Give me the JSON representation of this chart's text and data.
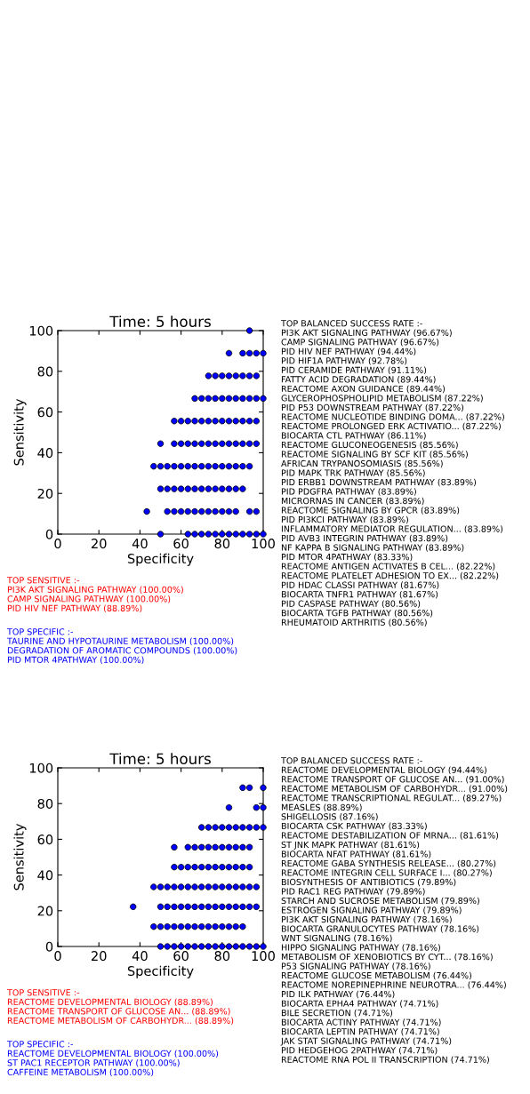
{
  "chart_data": [
    {
      "type": "scatter",
      "title": "Time: 5 hours",
      "xlabel": "Specificity",
      "ylabel": "Sensitivity",
      "xlim": [
        0,
        100
      ],
      "ylim": [
        0,
        100
      ],
      "xticks": [
        0,
        20,
        40,
        60,
        80,
        100
      ],
      "yticks": [
        0,
        20,
        40,
        60,
        80,
        100
      ],
      "marker": "circle",
      "grid": false,
      "series": [
        {
          "color": "#0000ff",
          "x": [
            93.33,
            83.33,
            90,
            93.33,
            96.67,
            100,
            73.33,
            76.67,
            80,
            83.33,
            86.67,
            90,
            93.33,
            96.67,
            66.67,
            70,
            73.33,
            76.67,
            80,
            83.33,
            86.67,
            90,
            93.33,
            96.67,
            100,
            56.67,
            60,
            63.33,
            66.67,
            70,
            73.33,
            76.67,
            80,
            83.33,
            86.67,
            90,
            93.33,
            96.67,
            50,
            56.67,
            60,
            63.33,
            66.67,
            70,
            73.33,
            76.67,
            80,
            83.33,
            86.67,
            90,
            93.33,
            96.67,
            46.67,
            50,
            53.33,
            56.67,
            60,
            63.33,
            66.67,
            70,
            73.33,
            76.67,
            80,
            83.33,
            86.67,
            90,
            93.33,
            50,
            53.33,
            56.67,
            60,
            63.33,
            66.67,
            70,
            73.33,
            76.67,
            80,
            83.33,
            86.67,
            90,
            43.33,
            53.33,
            56.67,
            60,
            63.33,
            66.67,
            70,
            73.33,
            76.67,
            80,
            83.33,
            86.67,
            93.33,
            96.67,
            50,
            63.33,
            66.67,
            70,
            73.33,
            76.67,
            80,
            83.33,
            86.67,
            90,
            93.33,
            96.67,
            100
          ],
          "values": [
            100,
            88.89,
            88.89,
            88.89,
            88.89,
            88.89,
            77.78,
            77.78,
            77.78,
            77.78,
            77.78,
            77.78,
            77.78,
            77.78,
            66.67,
            66.67,
            66.67,
            66.67,
            66.67,
            66.67,
            66.67,
            66.67,
            66.67,
            66.67,
            66.67,
            55.56,
            55.56,
            55.56,
            55.56,
            55.56,
            55.56,
            55.56,
            55.56,
            55.56,
            55.56,
            55.56,
            55.56,
            55.56,
            44.44,
            44.44,
            44.44,
            44.44,
            44.44,
            44.44,
            44.44,
            44.44,
            44.44,
            44.44,
            44.44,
            44.44,
            44.44,
            44.44,
            33.33,
            33.33,
            33.33,
            33.33,
            33.33,
            33.33,
            33.33,
            33.33,
            33.33,
            33.33,
            33.33,
            33.33,
            33.33,
            33.33,
            33.33,
            22.22,
            22.22,
            22.22,
            22.22,
            22.22,
            22.22,
            22.22,
            22.22,
            22.22,
            22.22,
            22.22,
            22.22,
            22.22,
            11.11,
            11.11,
            11.11,
            11.11,
            11.11,
            11.11,
            11.11,
            11.11,
            11.11,
            11.11,
            11.11,
            11.11,
            11.11,
            11.11,
            0,
            0,
            0,
            0,
            0,
            0,
            0,
            0,
            0,
            0,
            0,
            0,
            0
          ]
        }
      ],
      "annotations": [
        "TOP BALANCED SUCCESS RATE :-\nPI3K AKT SIGNALING PATHWAY (96.67%)\nCAMP SIGNALING PATHWAY (96.67%)\nPID HIV NEF PATHWAY (94.44%)\nPID HIF1A PATHWAY (92.78%)\nPID CERAMIDE PATHWAY (91.11%)\nFATTY ACID DEGRADATION (89.44%)\nREACTOME AXON GUIDANCE (89.44%)\nGLYCEROPHOSPHOLIPID METABOLISM (87.22%)\nPID P53 DOWNSTREAM PATHWAY (87.22%)\nREACTOME NUCLEOTIDE BINDING DOMA... (87.22%)\nREACTOME PROLONGED ERK ACTIVATIO... (87.22%)\nBIOCARTA CTL PATHWAY (86.11%)\nREACTOME GLUCONEOGENESIS (85.56%)\nREACTOME SIGNALING BY SCF KIT (85.56%)\nAFRICAN TRYPANOSOMIASIS (85.56%)\nPID MAPK TRK PATHWAY (85.56%)\nPID ERBB1 DOWNSTREAM PATHWAY (83.89%)\nPID PDGFRA PATHWAY (83.89%)\nMICRORNAS IN CANCER (83.89%)\nREACTOME SIGNALING BY GPCR (83.89%)\nPID PI3KCI PATHWAY (83.89%)\nINFLAMMATORY MEDIATOR REGULATION... (83.89%)\nPID AVB3 INTEGRIN PATHWAY (83.89%)\nNF KAPPA B SIGNALING PATHWAY (83.89%)\nPID MTOR 4PATHWAY (83.33%)\nREACTOME ANTIGEN ACTIVATES B CEL... (82.22%)\nREACTOME PLATELET ADHESION TO EX... (82.22%)\nPID HDAC CLASSI PATHWAY (81.67%)\nBIOCARTA TNFR1 PATHWAY (81.67%)\nPID CASPASE PATHWAY (80.56%)\nBIOCARTA TGFB PATHWAY (80.56%)\nRHEUMATOID ARTHRITIS (80.56%)",
        "TOP SENSITIVE :-\nPI3K AKT SIGNALING PATHWAY (100.00%)\nCAMP SIGNALING PATHWAY (100.00%)\nPID HIV NEF PATHWAY (88.89%)",
        "TOP SPECIFIC :-\nTAURINE AND HYPOTAURINE METABOLISM (100.00%)\nDEGRADATION OF AROMATIC COMPOUNDS (100.00%)\nPID MTOR 4PATHWAY (100.00%)"
      ]
    },
    {
      "type": "scatter",
      "title": "Time: 5 hours",
      "xlabel": "Specificity",
      "ylabel": "Sensitivity",
      "xlim": [
        0,
        100
      ],
      "ylim": [
        0,
        100
      ],
      "xticks": [
        0,
        20,
        40,
        60,
        80,
        100
      ],
      "yticks": [
        0,
        20,
        40,
        60,
        80,
        100
      ],
      "marker": "circle",
      "grid": false,
      "series": [
        {
          "color": "#0000ff",
          "x": [
            90,
            93.33,
            100,
            83.33,
            96.67,
            100,
            70,
            73.33,
            76.67,
            80,
            83.33,
            86.67,
            90,
            93.33,
            96.67,
            100,
            56.67,
            63.33,
            66.67,
            70,
            73.33,
            76.67,
            80,
            83.33,
            86.67,
            90,
            93.33,
            56.67,
            60,
            63.33,
            66.67,
            70,
            73.33,
            76.67,
            80,
            83.33,
            86.67,
            90,
            93.33,
            46.67,
            50,
            53.33,
            56.67,
            60,
            63.33,
            66.67,
            70,
            73.33,
            76.67,
            80,
            83.33,
            86.67,
            90,
            93.33,
            96.67,
            36.67,
            50,
            53.33,
            56.67,
            60,
            63.33,
            66.67,
            70,
            73.33,
            76.67,
            80,
            83.33,
            86.67,
            90,
            93.33,
            96.67,
            46.67,
            50,
            53.33,
            56.67,
            60,
            63.33,
            66.67,
            70,
            73.33,
            76.67,
            80,
            83.33,
            86.67,
            90,
            50,
            53.33,
            56.67,
            60,
            63.33,
            66.67,
            70,
            73.33,
            76.67,
            80,
            83.33,
            86.67,
            90,
            93.33,
            96.67,
            100
          ],
          "values": [
            88.89,
            88.89,
            88.89,
            77.78,
            77.78,
            77.78,
            66.67,
            66.67,
            66.67,
            66.67,
            66.67,
            66.67,
            66.67,
            66.67,
            66.67,
            66.67,
            55.56,
            55.56,
            55.56,
            55.56,
            55.56,
            55.56,
            55.56,
            55.56,
            55.56,
            55.56,
            55.56,
            44.44,
            44.44,
            44.44,
            44.44,
            44.44,
            44.44,
            44.44,
            44.44,
            44.44,
            44.44,
            44.44,
            44.44,
            33.33,
            33.33,
            33.33,
            33.33,
            33.33,
            33.33,
            33.33,
            33.33,
            33.33,
            33.33,
            33.33,
            33.33,
            33.33,
            33.33,
            33.33,
            33.33,
            22.22,
            22.22,
            22.22,
            22.22,
            22.22,
            22.22,
            22.22,
            22.22,
            22.22,
            22.22,
            22.22,
            22.22,
            22.22,
            22.22,
            22.22,
            22.22,
            11.11,
            11.11,
            11.11,
            11.11,
            11.11,
            11.11,
            11.11,
            11.11,
            11.11,
            11.11,
            11.11,
            11.11,
            11.11,
            11.11,
            0,
            0,
            0,
            0,
            0,
            0,
            0,
            0,
            0,
            0,
            0,
            0,
            0,
            0,
            0,
            0
          ]
        }
      ],
      "annotations": [
        "TOP BALANCED SUCCESS RATE :-\nREACTOME DEVELOPMENTAL BIOLOGY (94.44%)\nREACTOME TRANSPORT OF GLUCOSE AN... (91.00%)\nREACTOME METABOLISM OF CARBOHYDR... (91.00%)\nREACTOME TRANSCRIPTIONAL REGULAT... (89.27%)\nMEASLES (88.89%)\nSHIGELLOSIS (87.16%)\nBIOCARTA CSK PATHWAY (83.33%)\nREACTOME DESTABILIZATION OF MRNA... (81.61%)\nST JNK MAPK PATHWAY (81.61%)\nBIOCARTA NFAT PATHWAY (81.61%)\nREACTOME GABA SYNTHESIS RELEASE... (80.27%)\nREACTOME INTEGRIN CELL SURFACE I... (80.27%)\nBIOSYNTHESIS OF ANTIBIOTICS (79.89%)\nPID RAC1 REG PATHWAY (79.89%)\nSTARCH AND SUCROSE METABOLISM (79.89%)\nESTROGEN SIGNALING PATHWAY (79.89%)\nPI3K AKT SIGNALING PATHWAY (78.16%)\nBIOCARTA GRANULOCYTES PATHWAY (78.16%)\nWNT SIGNALING (78.16%)\nHIPPO SIGNALING PATHWAY (78.16%)\nMETABOLISM OF XENOBIOTICS BY CYT... (78.16%)\nP53 SIGNALING PATHWAY (78.16%)\nREACTOME GLUCOSE METABOLISM (76.44%)\nREACTOME NOREPINEPHRINE NEUROTRA... (76.44%)\nPID ILK PATHWAY (76.44%)\nBIOCARTA EPHA4 PATHWAY (74.71%)\nBILE SECRETION (74.71%)\nBIOCARTA ACTINY PATHWAY (74.71%)\nBIOCARTA LEPTIN PATHWAY (74.71%)\nJAK STAT SIGNALING PATHWAY (74.71%)\nPID HEDGEHOG 2PATHWAY (74.71%)\nREACTOME RNA POL II TRANSCRIPTION (74.71%)",
        "TOP SENSITIVE :-\nREACTOME DEVELOPMENTAL BIOLOGY (88.89%)\nREACTOME TRANSPORT OF GLUCOSE AN... (88.89%)\nREACTOME METABOLISM OF CARBOHYDR... (88.89%)",
        "TOP SPECIFIC :-\nREACTOME DEVELOPMENTAL BIOLOGY (100.00%)\nST PAC1 RECEPTOR PATHWAY (100.00%)\nCAFFEINE METABOLISM (100.00%)"
      ]
    }
  ]
}
